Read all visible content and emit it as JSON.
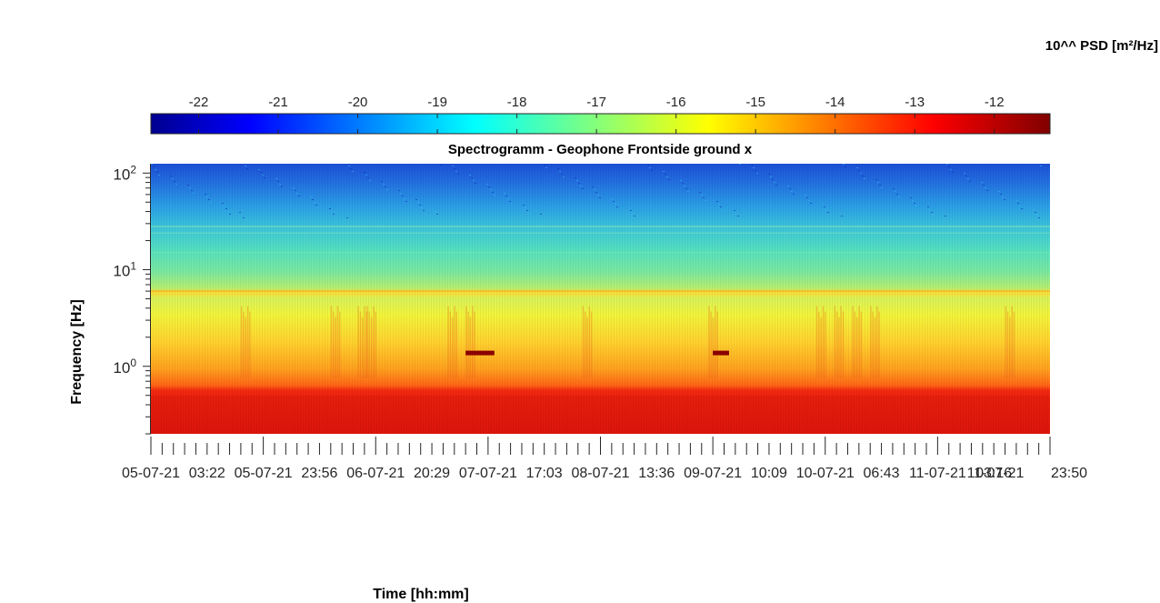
{
  "chart_data": {
    "type": "heatmap",
    "title": "Spectrogramm - Geophone Frontside ground x",
    "xlabel": "Time [hh:mm]",
    "ylabel": "Frequency [Hz]",
    "y_scale": "log",
    "ylim": [
      0.2,
      125
    ],
    "y_ticks": [
      {
        "value": 1,
        "base": "10",
        "exp": "0"
      },
      {
        "value": 10,
        "base": "10",
        "exp": "1"
      },
      {
        "value": 100,
        "base": "10",
        "exp": "2"
      }
    ],
    "x_ticks": [
      "05-07-21",
      "03:22",
      "05-07-21",
      "23:56",
      "06-07-21",
      "20:29",
      "07-07-21",
      "17:03",
      "08-07-21",
      "13:36",
      "09-07-21",
      "10:09",
      "10-07-21",
      "06:43",
      "11-07-21",
      "03:16",
      "11-07-21",
      "23:50"
    ],
    "colorbar": {
      "label": "10^^ PSD [m²/Hz]",
      "range": [
        -22.6,
        -11.3
      ],
      "ticks": [
        "-22",
        "-21",
        "-20",
        "-19",
        "-18",
        "-17",
        "-16",
        "-15",
        "-14",
        "-13",
        "-12"
      ],
      "tick_values": [
        -22,
        -21,
        -20,
        -19,
        -18,
        -17,
        -16,
        -15,
        -14,
        -13,
        -12
      ],
      "colormap": "jet",
      "placement": "top"
    },
    "grid": false,
    "bands": [
      {
        "freq_range": [
          0.2,
          0.6
        ],
        "log_psd": -12.3
      },
      {
        "freq_range": [
          0.6,
          3.5
        ],
        "log_psd": -14.5
      },
      {
        "freq_range": [
          3.5,
          6
        ],
        "log_psd": -15.8
      },
      {
        "freq_range": [
          6,
          20
        ],
        "log_psd": -17.3
      },
      {
        "freq_range": [
          20,
          50
        ],
        "log_psd": -18.2
      },
      {
        "freq_range": [
          50,
          125
        ],
        "log_psd": -20.5
      }
    ]
  }
}
